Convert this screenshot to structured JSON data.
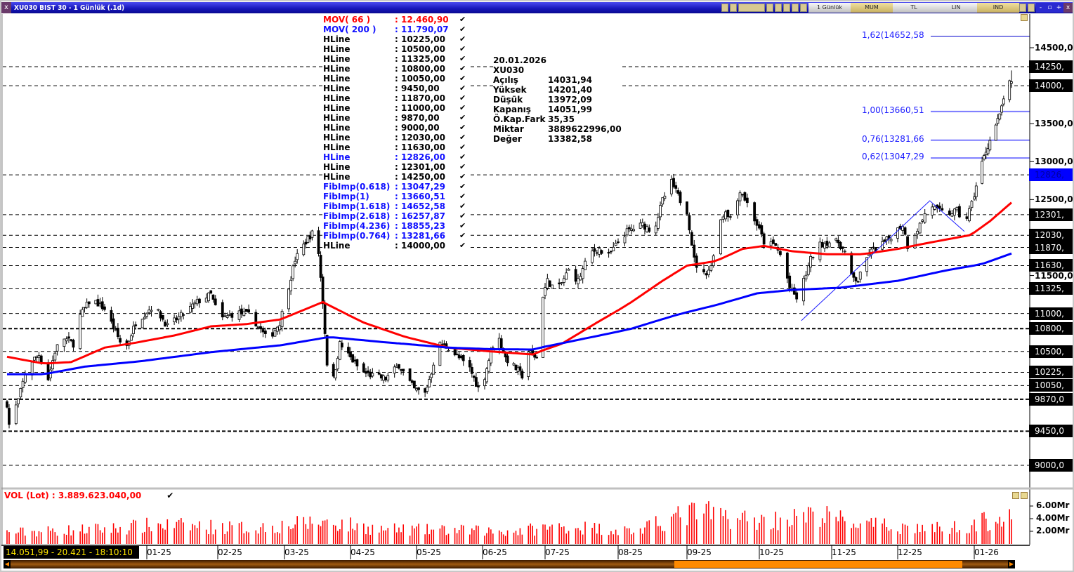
{
  "window": {
    "title": "XU030 BIST 30 - 1 Günlük (.1d)",
    "close_glyph": "x",
    "toolbar": {
      "period": "1 Günlük",
      "chart_type": "MUM",
      "currency": "TL",
      "scale": "LIN",
      "indicators": "IND"
    },
    "window_buttons": [
      "-",
      "▫",
      "+",
      "x"
    ]
  },
  "legend": [
    {
      "name": "MOV( 66 )",
      "value": ": 12.460,90",
      "color": "red"
    },
    {
      "name": "MOV( 200 )",
      "value": ": 11.790,07",
      "color": "blue"
    },
    {
      "name": "HLine",
      "value": ": 10225,00",
      "color": "black"
    },
    {
      "name": "HLine",
      "value": ": 10500,00",
      "color": "black"
    },
    {
      "name": "HLine",
      "value": ": 11325,00",
      "color": "black"
    },
    {
      "name": "HLine",
      "value": ": 10800,00",
      "color": "black"
    },
    {
      "name": "HLine",
      "value": ": 10050,00",
      "color": "black"
    },
    {
      "name": "HLine",
      "value": ": 9450,00",
      "color": "black"
    },
    {
      "name": "HLine",
      "value": ": 11870,00",
      "color": "black"
    },
    {
      "name": "HLine",
      "value": ": 11000,00",
      "color": "black"
    },
    {
      "name": "HLine",
      "value": ": 9870,00",
      "color": "black"
    },
    {
      "name": "HLine",
      "value": ": 9000,00",
      "color": "black"
    },
    {
      "name": "HLine",
      "value": ": 12030,00",
      "color": "black"
    },
    {
      "name": "HLine",
      "value": ": 11630,00",
      "color": "black"
    },
    {
      "name": "HLine",
      "value": ": 12826,00",
      "color": "blue"
    },
    {
      "name": "HLine",
      "value": ": 12301,00",
      "color": "black"
    },
    {
      "name": "HLine",
      "value": ": 14250,00",
      "color": "black"
    },
    {
      "name": "FibImp(0.618)",
      "value": ": 13047,29",
      "color": "blue"
    },
    {
      "name": "FibImp(1)",
      "value": ": 13660,51",
      "color": "blue"
    },
    {
      "name": "FibImp(1.618)",
      "value": ": 14652,58",
      "color": "blue"
    },
    {
      "name": "FibImp(2.618)",
      "value": ": 16257,87",
      "color": "blue"
    },
    {
      "name": "FibImp(4.236)",
      "value": ": 18855,23",
      "color": "blue"
    },
    {
      "name": "FibImp(0.764)",
      "value": ": 13281,66",
      "color": "blue"
    },
    {
      "name": "HLine",
      "value": ": 14000,00",
      "color": "black"
    }
  ],
  "legend_check": "✔",
  "info": {
    "date": "20.01.2026",
    "symbol": "XU030",
    "rows": [
      {
        "k": "Açılış",
        "v": "14031,94"
      },
      {
        "k": "Yüksek",
        "v": "14201,40"
      },
      {
        "k": "Düşük",
        "v": "13972,09"
      },
      {
        "k": "Kapanış",
        "v": "14051,99"
      },
      {
        "k": "Ö.Kap.Fark",
        "v": "35,35"
      },
      {
        "k": "Miktar",
        "v": "3889622996,00"
      },
      {
        "k": "Değer",
        "v": "13382,58"
      }
    ]
  },
  "price_axis": {
    "ticks": [
      {
        "v": 14500,
        "label": "14500,00"
      },
      {
        "v": 13500,
        "label": "13500,00"
      },
      {
        "v": 13000,
        "label": "13000,00"
      },
      {
        "v": 12500,
        "label": "12500,00"
      },
      {
        "v": 11500,
        "label": "11500,00"
      }
    ],
    "hline_labels": [
      {
        "v": 14250,
        "label": "14250,",
        "style": "box"
      },
      {
        "v": 14000,
        "label": "14000,",
        "style": "box"
      },
      {
        "v": 12826,
        "label": "12826,",
        "style": "blue"
      },
      {
        "v": 12301,
        "label": "12301,",
        "style": "box"
      },
      {
        "v": 12030,
        "label": "12030,",
        "style": "box"
      },
      {
        "v": 11870,
        "label": "11870,",
        "style": "box"
      },
      {
        "v": 11630,
        "label": "11630,",
        "style": "box"
      },
      {
        "v": 11325,
        "label": "11325,",
        "style": "box"
      },
      {
        "v": 11000,
        "label": "11000,",
        "style": "box"
      },
      {
        "v": 10800,
        "label": "10800,",
        "style": "box"
      },
      {
        "v": 10500,
        "label": "10500,",
        "style": "box"
      },
      {
        "v": 10225,
        "label": "10225,",
        "style": "box"
      },
      {
        "v": 10050,
        "label": "10050,",
        "style": "box"
      },
      {
        "v": 9870,
        "label": "9870,0",
        "style": "box"
      },
      {
        "v": 9450,
        "label": "9450,0",
        "style": "box"
      },
      {
        "v": 9000,
        "label": "9000,0",
        "style": "box"
      }
    ]
  },
  "fib_labels": [
    {
      "v": 14652.58,
      "label": "1,62(14652,58"
    },
    {
      "v": 13660.51,
      "label": "1,00(13660,51"
    },
    {
      "v": 13281.66,
      "label": "0,76(13281,66"
    },
    {
      "v": 13047.29,
      "label": "0,62(13047,29"
    }
  ],
  "volume": {
    "label": "VOL (Lot)  : 3.889.623.040,00",
    "check": "✔",
    "ticks": [
      {
        "v": 6,
        "label": "6.00Mr"
      },
      {
        "v": 4,
        "label": "4.00Mr"
      },
      {
        "v": 2,
        "label": "2.00Mr"
      }
    ]
  },
  "time_axis": {
    "labels": [
      "01-25",
      "02-25",
      "03-25",
      "04-25",
      "05-25",
      "06-25",
      "07-25",
      "08-25",
      "09-25",
      "10-25",
      "11-25",
      "12-25",
      "01-26"
    ]
  },
  "status_text": "14.051,99 - 20.421 - 18:10:10",
  "colors": {
    "ma66": "#ff0000",
    "ma200": "#0000ff",
    "fib": "#1a1aff",
    "volume": "#ff0000",
    "title_bar": "#1515b8",
    "status_text": "#ffe600",
    "scroll_thumb": "#ff8a00"
  },
  "chart_data": {
    "type": "candlestick",
    "symbol": "XU030",
    "period": "1 Günlük",
    "y_range": [
      9000,
      14500
    ],
    "price_path": [
      [
        "2024-10-31",
        9810
      ],
      [
        "2024-11-01",
        9536
      ],
      [
        "2024-11-05",
        9860
      ],
      [
        "2024-11-09",
        10320
      ],
      [
        "2024-11-14",
        10460
      ],
      [
        "2024-11-18",
        10140
      ],
      [
        "2024-11-21",
        10500
      ],
      [
        "2024-11-24",
        10690
      ],
      [
        "2024-11-29",
        10600
      ],
      [
        "2024-12-02",
        10970
      ],
      [
        "2024-12-07",
        11200
      ],
      [
        "2024-12-13",
        11060
      ],
      [
        "2024-12-19",
        10690
      ],
      [
        "2024-12-22",
        10500
      ],
      [
        "2024-12-27",
        10880
      ],
      [
        "2025-01-04",
        11110
      ],
      [
        "2025-01-10",
        10830
      ],
      [
        "2025-01-16",
        10970
      ],
      [
        "2025-01-23",
        11150
      ],
      [
        "2025-01-29",
        11250
      ],
      [
        "2025-02-02",
        10920
      ],
      [
        "2025-02-09",
        11015
      ],
      [
        "2025-02-15",
        10970
      ],
      [
        "2025-02-22",
        10645
      ],
      [
        "2025-02-27",
        10880
      ],
      [
        "2025-03-02",
        11250
      ],
      [
        "2025-03-06",
        11710
      ],
      [
        "2025-03-12",
        11990
      ],
      [
        "2025-03-16",
        12120
      ],
      [
        "2025-03-19",
        11150
      ],
      [
        "2025-03-22",
        9950
      ],
      [
        "2025-03-24",
        10140
      ],
      [
        "2025-03-27",
        10600
      ],
      [
        "2025-04-01",
        10415
      ],
      [
        "2025-04-06",
        10230
      ],
      [
        "2025-04-11",
        10180
      ],
      [
        "2025-04-17",
        10140
      ],
      [
        "2025-04-23",
        10320
      ],
      [
        "2025-04-30",
        10000
      ],
      [
        "2025-05-05",
        9950
      ],
      [
        "2025-05-08",
        10230
      ],
      [
        "2025-05-11",
        10600
      ],
      [
        "2025-05-16",
        10550
      ],
      [
        "2025-05-21",
        10410
      ],
      [
        "2025-05-26",
        10275
      ],
      [
        "2025-05-31",
        9950
      ],
      [
        "2025-06-05",
        10500
      ],
      [
        "2025-06-08",
        10740
      ],
      [
        "2025-06-12",
        10415
      ],
      [
        "2025-06-17",
        10275
      ],
      [
        "2025-06-20",
        10180
      ],
      [
        "2025-06-23",
        10500
      ],
      [
        "2025-06-27",
        10415
      ],
      [
        "2025-06-29",
        11150
      ],
      [
        "2025-07-02",
        11430
      ],
      [
        "2025-07-06",
        11290
      ],
      [
        "2025-07-11",
        11570
      ],
      [
        "2025-07-15",
        11430
      ],
      [
        "2025-07-20",
        11800
      ],
      [
        "2025-07-24",
        11850
      ],
      [
        "2025-07-27",
        11710
      ],
      [
        "2025-08-01",
        11940
      ],
      [
        "2025-08-05",
        12080
      ],
      [
        "2025-08-12",
        12170
      ],
      [
        "2025-08-17",
        12080
      ],
      [
        "2025-08-21",
        12490
      ],
      [
        "2025-08-25",
        12725
      ],
      [
        "2025-08-29",
        12490
      ],
      [
        "2025-09-01",
        12355
      ],
      [
        "2025-09-04",
        11710
      ],
      [
        "2025-09-07",
        11480
      ],
      [
        "2025-09-11",
        11615
      ],
      [
        "2025-09-14",
        12170
      ],
      [
        "2025-09-17",
        12355
      ],
      [
        "2025-09-20",
        12215
      ],
      [
        "2025-09-23",
        12630
      ],
      [
        "2025-09-26",
        12450
      ],
      [
        "2025-09-30",
        12170
      ],
      [
        "2025-10-03",
        11940
      ],
      [
        "2025-10-08",
        11890
      ],
      [
        "2025-10-11",
        11710
      ],
      [
        "2025-10-14",
        11340
      ],
      [
        "2025-10-17",
        11200
      ],
      [
        "2025-10-20",
        11430
      ],
      [
        "2025-10-23",
        11710
      ],
      [
        "2025-10-26",
        11890
      ],
      [
        "2025-10-30",
        11940
      ],
      [
        "2025-11-04",
        11940
      ],
      [
        "2025-11-07",
        11800
      ],
      [
        "2025-11-10",
        11480
      ],
      [
        "2025-11-13",
        11430
      ],
      [
        "2025-11-18",
        11800
      ],
      [
        "2025-11-23",
        11890
      ],
      [
        "2025-11-27",
        11990
      ],
      [
        "2025-12-03",
        12170
      ],
      [
        "2025-12-05",
        11890
      ],
      [
        "2025-12-10",
        12170
      ],
      [
        "2025-12-14",
        12450
      ],
      [
        "2025-12-17",
        12355
      ],
      [
        "2025-12-21",
        12310
      ],
      [
        "2025-12-25",
        12355
      ],
      [
        "2025-12-28",
        12170
      ],
      [
        "2025-12-31",
        12450
      ],
      [
        "2026-01-04",
        12910
      ],
      [
        "2026-01-07",
        13140
      ],
      [
        "2026-01-11",
        13420
      ],
      [
        "2026-01-14",
        13600
      ],
      [
        "2026-01-17",
        13970
      ],
      [
        "2026-01-20",
        14051.99
      ]
    ],
    "last_bar": {
      "open": 14031.94,
      "high": 14201.4,
      "low": 13972.09,
      "close": 14051.99
    },
    "ma66": [
      [
        "2024-10-31",
        10430
      ],
      [
        "2024-11-16",
        10340
      ],
      [
        "2024-11-28",
        10360
      ],
      [
        "2024-12-13",
        10550
      ],
      [
        "2024-12-28",
        10620
      ],
      [
        "2025-01-13",
        10710
      ],
      [
        "2025-01-29",
        10830
      ],
      [
        "2025-02-13",
        10860
      ],
      [
        "2025-02-27",
        10920
      ],
      [
        "2025-03-19",
        11150
      ],
      [
        "2025-04-07",
        10880
      ],
      [
        "2025-04-26",
        10690
      ],
      [
        "2025-05-16",
        10550
      ],
      [
        "2025-06-05",
        10500
      ],
      [
        "2025-06-25",
        10460
      ],
      [
        "2025-07-08",
        10600
      ],
      [
        "2025-07-23",
        10880
      ],
      [
        "2025-08-07",
        11150
      ],
      [
        "2025-08-21",
        11430
      ],
      [
        "2025-09-01",
        11630
      ],
      [
        "2025-09-13",
        11690
      ],
      [
        "2025-09-24",
        11850
      ],
      [
        "2025-10-03",
        11890
      ],
      [
        "2025-10-15",
        11820
      ],
      [
        "2025-10-30",
        11780
      ],
      [
        "2025-11-15",
        11780
      ],
      [
        "2025-12-01",
        11850
      ],
      [
        "2025-12-15",
        11940
      ],
      [
        "2025-12-30",
        12030
      ],
      [
        "2026-01-09",
        12215
      ],
      [
        "2026-01-20",
        12460.9
      ]
    ],
    "ma200": [
      [
        "2024-10-31",
        10200
      ],
      [
        "2024-11-16",
        10200
      ],
      [
        "2024-12-04",
        10300
      ],
      [
        "2024-12-29",
        10370
      ],
      [
        "2025-01-29",
        10490
      ],
      [
        "2025-02-27",
        10580
      ],
      [
        "2025-03-22",
        10690
      ],
      [
        "2025-04-17",
        10620
      ],
      [
        "2025-05-16",
        10550
      ],
      [
        "2025-06-05",
        10530
      ],
      [
        "2025-06-25",
        10525
      ],
      [
        "2025-07-14",
        10645
      ],
      [
        "2025-08-07",
        10800
      ],
      [
        "2025-08-26",
        10970
      ],
      [
        "2025-09-13",
        11110
      ],
      [
        "2025-09-30",
        11265
      ],
      [
        "2025-10-15",
        11310
      ],
      [
        "2025-11-05",
        11340
      ],
      [
        "2025-12-01",
        11430
      ],
      [
        "2025-12-21",
        11570
      ],
      [
        "2026-01-06",
        11660
      ],
      [
        "2026-01-20",
        11790.07
      ]
    ],
    "trendline": [
      [
        "2025-10-19",
        10905
      ],
      [
        "2025-12-14",
        12485
      ],
      [
        "2025-12-28",
        12080
      ]
    ],
    "hlines": [
      10225,
      10500,
      11325,
      10800,
      10050,
      9450,
      11870,
      11000,
      9870,
      9000,
      12030,
      11630,
      12826,
      12301,
      14250,
      14000
    ],
    "hlines_bold": [
      10800,
      9870,
      9450
    ],
    "fib_levels": [
      13047.29,
      13660.51,
      14652.58,
      13281.66
    ],
    "volume_level_mr": [
      [
        "2024-10-31",
        1.8
      ],
      [
        "2024-12-15",
        2.4
      ],
      [
        "2025-01-06",
        3.0
      ],
      [
        "2025-02-15",
        2.5
      ],
      [
        "2025-03-20",
        3.5
      ],
      [
        "2025-04-15",
        2.3
      ],
      [
        "2025-06-15",
        2.0
      ],
      [
        "2025-07-10",
        2.8
      ],
      [
        "2025-08-10",
        2.0
      ],
      [
        "2025-08-25",
        4.0
      ],
      [
        "2025-09-05",
        5.0
      ],
      [
        "2025-10-01",
        3.6
      ],
      [
        "2025-10-28",
        4.5
      ],
      [
        "2025-11-15",
        3.0
      ],
      [
        "2025-12-20",
        2.4
      ],
      [
        "2026-01-10",
        3.8
      ],
      [
        "2026-01-20",
        3.89
      ]
    ],
    "volume_unit": "Mr",
    "volume_range": [
      0,
      7.5
    ]
  }
}
